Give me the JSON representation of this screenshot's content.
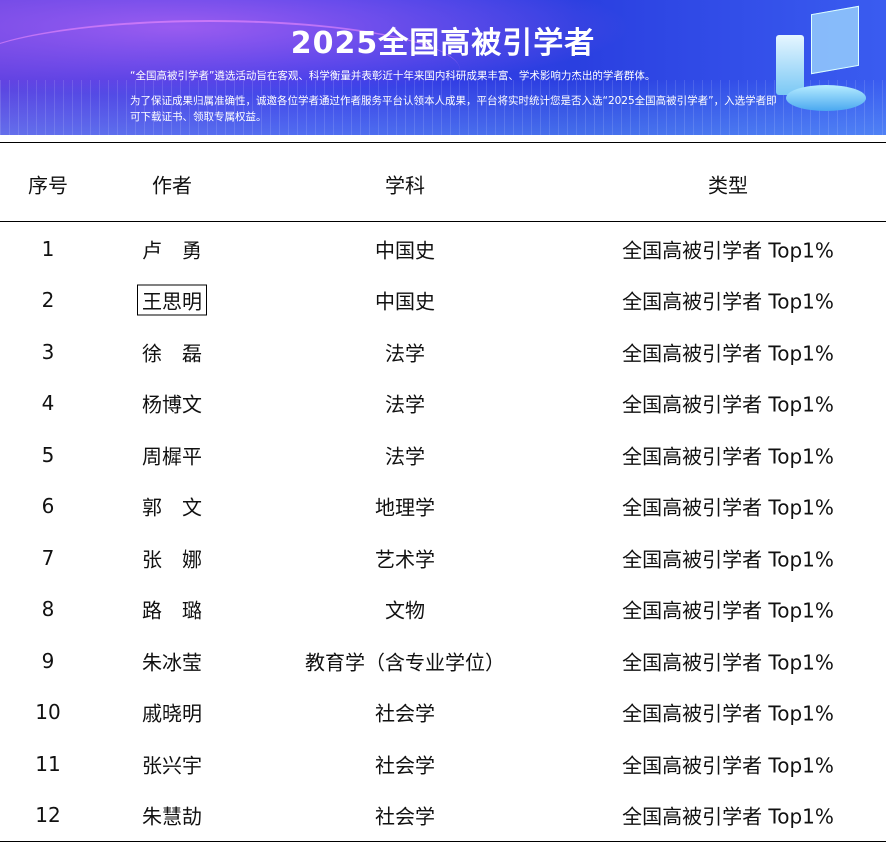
{
  "banner": {
    "title": "2025全国高被引学者",
    "line1": "“全国高被引学者”遴选活动旨在客观、科学衡量并表彰近十年来国内科研成果丰富、学术影响力杰出的学者群体。",
    "line2": "为了保证成果归属准确性，诚邀各位学者通过作者服务平台认领本人成果，平台将实时统计您是否入选“2025全国高被引学者”，入选学者即可下载证书、领取专属权益。"
  },
  "table": {
    "headers": [
      "序号",
      "作者",
      "学科",
      "类型"
    ],
    "rows": [
      [
        "1",
        "卢　勇",
        "中国史",
        "全国高被引学者 Top1%"
      ],
      [
        "2",
        "王思明",
        "中国史",
        "全国高被引学者 Top1%"
      ],
      [
        "3",
        "徐　磊",
        "法学",
        "全国高被引学者 Top1%"
      ],
      [
        "4",
        "杨博文",
        "法学",
        "全国高被引学者 Top1%"
      ],
      [
        "5",
        "周樨平",
        "法学",
        "全国高被引学者 Top1%"
      ],
      [
        "6",
        "郭　文",
        "地理学",
        "全国高被引学者 Top1%"
      ],
      [
        "7",
        "张　娜",
        "艺术学",
        "全国高被引学者 Top1%"
      ],
      [
        "8",
        "路　璐",
        "文物",
        "全国高被引学者 Top1%"
      ],
      [
        "9",
        "朱冰莹",
        "教育学（含专业学位）",
        "全国高被引学者 Top1%"
      ],
      [
        "10",
        "戚晓明",
        "社会学",
        "全国高被引学者 Top1%"
      ],
      [
        "11",
        "张兴宇",
        "社会学",
        "全国高被引学者 Top1%"
      ],
      [
        "12",
        "朱慧劼",
        "社会学",
        "全国高被引学者 Top1%"
      ]
    ]
  }
}
